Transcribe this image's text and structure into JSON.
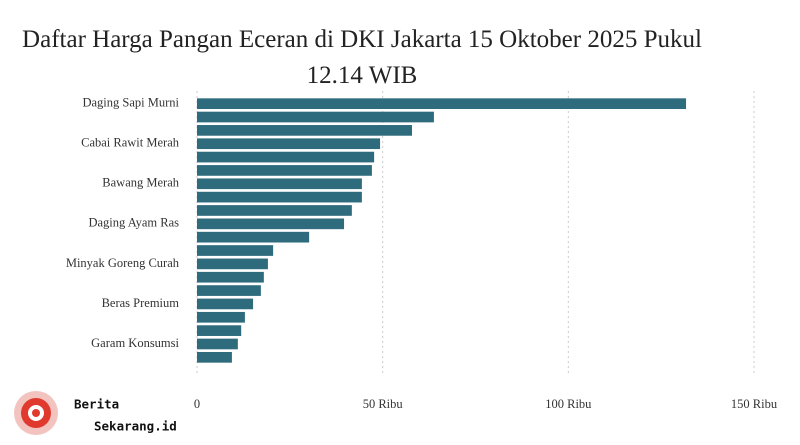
{
  "chart_data": {
    "type": "hbar",
    "title": "Daftar Harga Pangan Eceran di DKI Jakarta 15 Oktober 2025 Pukul 12.14 WIB",
    "categories": [
      "Daging Sapi Murni",
      null,
      null,
      "Cabai Rawit Merah",
      null,
      null,
      "Bawang Merah",
      null,
      null,
      "Daging Ayam Ras",
      null,
      null,
      "Minyak Goreng Curah",
      null,
      null,
      "Beras Premium",
      null,
      null,
      "Garam Konsumsi",
      null
    ],
    "values": [
      131700,
      63800,
      57900,
      49300,
      47700,
      47100,
      44400,
      44400,
      41700,
      39600,
      30200,
      20500,
      19100,
      18000,
      17200,
      15100,
      12900,
      11900,
      11000,
      9400
    ],
    "color": "#2e6b7c",
    "xlim": [
      0,
      150000
    ],
    "xticks": [
      0,
      {
        "value": 50000,
        "label": "50 Ribu"
      },
      {
        "value": 100000,
        "label": "100 Ribu"
      },
      {
        "value": 150000,
        "label": "150 Ribu"
      }
    ],
    "grid": true
  },
  "logo": {
    "line1": "Berita",
    "line2": "Sekarang.id"
  }
}
